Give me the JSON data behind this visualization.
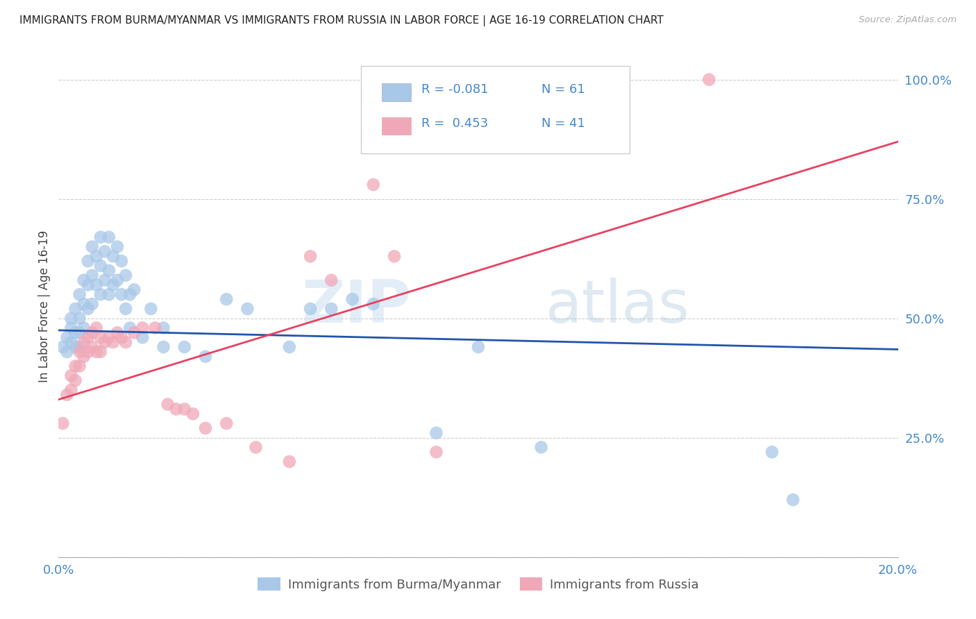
{
  "title": "IMMIGRANTS FROM BURMA/MYANMAR VS IMMIGRANTS FROM RUSSIA IN LABOR FORCE | AGE 16-19 CORRELATION CHART",
  "source": "Source: ZipAtlas.com",
  "ylabel": "In Labor Force | Age 16-19",
  "x_min": 0.0,
  "x_max": 0.2,
  "y_min": 0.0,
  "y_max": 1.05,
  "x_ticks": [
    0.0,
    0.05,
    0.1,
    0.15,
    0.2
  ],
  "x_tick_labels": [
    "0.0%",
    "",
    "",
    "",
    "20.0%"
  ],
  "y_ticks": [
    0.0,
    0.25,
    0.5,
    0.75,
    1.0
  ],
  "y_tick_labels": [
    "",
    "25.0%",
    "50.0%",
    "75.0%",
    "100.0%"
  ],
  "legend_label1": "Immigrants from Burma/Myanmar",
  "legend_label2": "Immigrants from Russia",
  "R1": "-0.081",
  "N1": "61",
  "R2": " 0.453",
  "N2": "41",
  "color_blue": "#A8C8E8",
  "color_pink": "#F0A8B8",
  "line_color_blue": "#2255AA",
  "line_color_pink": "#E84060",
  "watermark_zip": "ZIP",
  "watermark_atlas": "atlas",
  "title_color": "#222222",
  "axis_label_color": "#444444",
  "tick_color": "#4488CC",
  "blue_scatter_x": [
    0.001,
    0.002,
    0.002,
    0.003,
    0.003,
    0.003,
    0.004,
    0.004,
    0.004,
    0.005,
    0.005,
    0.005,
    0.005,
    0.006,
    0.006,
    0.006,
    0.007,
    0.007,
    0.007,
    0.008,
    0.008,
    0.008,
    0.009,
    0.009,
    0.01,
    0.01,
    0.01,
    0.011,
    0.011,
    0.012,
    0.012,
    0.012,
    0.013,
    0.013,
    0.014,
    0.014,
    0.015,
    0.015,
    0.016,
    0.016,
    0.017,
    0.017,
    0.018,
    0.02,
    0.022,
    0.025,
    0.025,
    0.03,
    0.035,
    0.04,
    0.045,
    0.055,
    0.06,
    0.065,
    0.07,
    0.075,
    0.09,
    0.1,
    0.115,
    0.17,
    0.175
  ],
  "blue_scatter_y": [
    0.44,
    0.46,
    0.43,
    0.48,
    0.5,
    0.45,
    0.52,
    0.47,
    0.44,
    0.55,
    0.5,
    0.47,
    0.44,
    0.58,
    0.53,
    0.48,
    0.62,
    0.57,
    0.52,
    0.65,
    0.59,
    0.53,
    0.63,
    0.57,
    0.67,
    0.61,
    0.55,
    0.64,
    0.58,
    0.67,
    0.6,
    0.55,
    0.63,
    0.57,
    0.65,
    0.58,
    0.62,
    0.55,
    0.59,
    0.52,
    0.55,
    0.48,
    0.56,
    0.46,
    0.52,
    0.48,
    0.44,
    0.44,
    0.42,
    0.54,
    0.52,
    0.44,
    0.52,
    0.52,
    0.54,
    0.53,
    0.26,
    0.44,
    0.23,
    0.22,
    0.12
  ],
  "pink_scatter_x": [
    0.001,
    0.002,
    0.003,
    0.003,
    0.004,
    0.004,
    0.005,
    0.005,
    0.006,
    0.006,
    0.007,
    0.007,
    0.008,
    0.008,
    0.009,
    0.009,
    0.01,
    0.01,
    0.011,
    0.012,
    0.013,
    0.014,
    0.015,
    0.016,
    0.018,
    0.02,
    0.023,
    0.026,
    0.028,
    0.03,
    0.032,
    0.035,
    0.04,
    0.047,
    0.055,
    0.06,
    0.065,
    0.075,
    0.08,
    0.09,
    0.155
  ],
  "pink_scatter_y": [
    0.28,
    0.34,
    0.38,
    0.35,
    0.4,
    0.37,
    0.43,
    0.4,
    0.45,
    0.42,
    0.46,
    0.43,
    0.47,
    0.44,
    0.48,
    0.43,
    0.46,
    0.43,
    0.45,
    0.46,
    0.45,
    0.47,
    0.46,
    0.45,
    0.47,
    0.48,
    0.48,
    0.32,
    0.31,
    0.31,
    0.3,
    0.27,
    0.28,
    0.23,
    0.2,
    0.63,
    0.58,
    0.78,
    0.63,
    0.22,
    1.0
  ],
  "blue_line_x": [
    0.0,
    0.2
  ],
  "blue_line_y": [
    0.475,
    0.435
  ],
  "pink_line_x": [
    0.0,
    0.2
  ],
  "pink_line_y": [
    0.33,
    0.87
  ]
}
